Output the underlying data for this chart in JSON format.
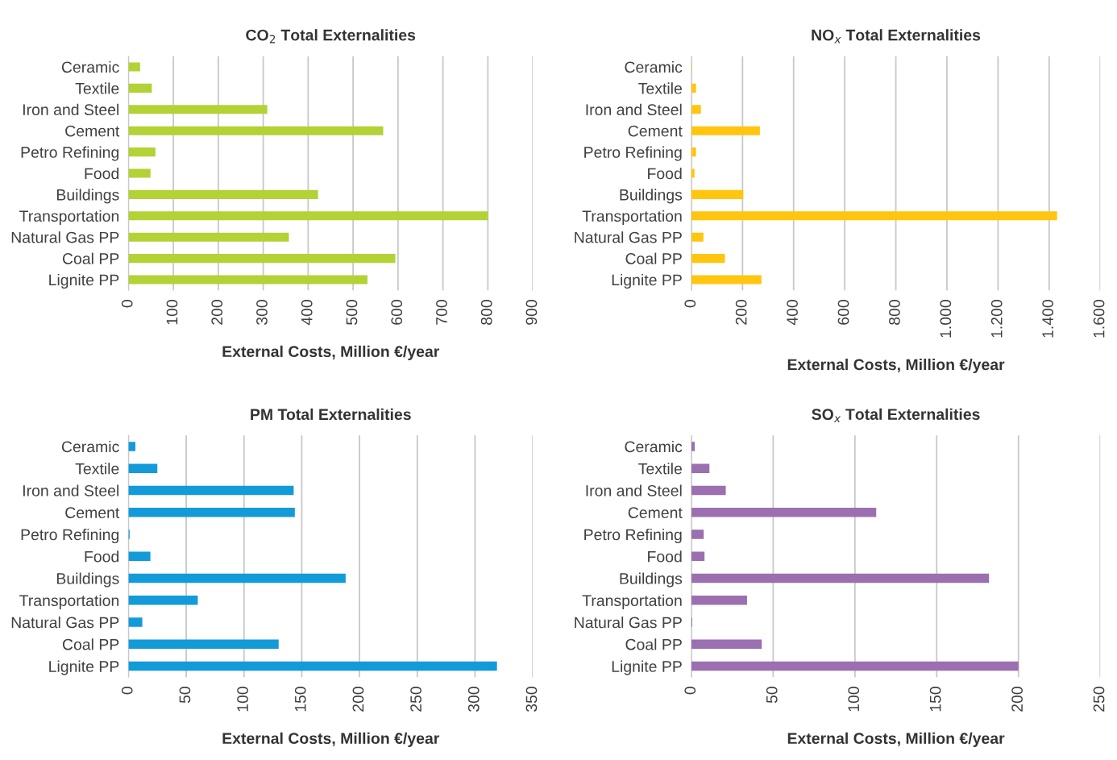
{
  "chart_data": [
    {
      "type": "bar",
      "orientation": "horizontal",
      "title": "CO$_{2}$ Total Externalities",
      "xlabel": "External Costs, Million €/year",
      "categories": [
        "Ceramic",
        "Textile",
        "Iron and Steel",
        "Cement",
        "Petro Refining",
        "Food",
        "Buildings",
        "Transportation",
        "Natural Gas PP",
        "Coal PP",
        "Lignite PP"
      ],
      "values": [
        26,
        52,
        309,
        567,
        60,
        49,
        422,
        800,
        357,
        594,
        532
      ],
      "color": "#b2d235",
      "xlim": [
        0,
        900
      ],
      "xticks": [
        0,
        100,
        200,
        300,
        400,
        500,
        600,
        700,
        800,
        900
      ],
      "grid": "x",
      "legend": false
    },
    {
      "type": "bar",
      "orientation": "horizontal",
      "title": "NO$_{x}$ Total Externalities",
      "xlabel": "External Costs, Million €/year",
      "categories": [
        "Ceramic",
        "Textile",
        "Iron and Steel",
        "Cement",
        "Petro Refining",
        "Food",
        "Buildings",
        "Transportation",
        "Natural Gas PP",
        "Coal PP",
        "Lignite PP"
      ],
      "values": [
        2,
        18,
        37,
        268,
        18,
        12,
        203,
        1431,
        47,
        131,
        274
      ],
      "color": "#ffc50f",
      "xlim": [
        0,
        1600
      ],
      "xticks": [
        0,
        200,
        400,
        600,
        800,
        {
          "value": 1000,
          "label": "1.000"
        },
        {
          "value": 1200,
          "label": "1.200"
        },
        {
          "value": 1400,
          "label": "1.400"
        },
        {
          "value": 1600,
          "label": "1.600"
        }
      ],
      "grid": "x",
      "legend": false
    },
    {
      "type": "bar",
      "orientation": "horizontal",
      "title": "PM Total Externalities",
      "xlabel": "External Costs, Million €/year",
      "categories": [
        "Ceramic",
        "Textile",
        "Iron and Steel",
        "Cement",
        "Petro Refining",
        "Food",
        "Buildings",
        "Transportation",
        "Natural Gas PP",
        "Coal PP",
        "Lignite PP"
      ],
      "values": [
        6,
        25,
        143,
        144,
        1,
        19,
        188,
        60,
        12,
        130,
        319
      ],
      "color": "#139ad9",
      "xlim": [
        0,
        350
      ],
      "xticks": [
        0,
        50,
        100,
        150,
        200,
        250,
        300,
        350
      ],
      "grid": "x",
      "legend": false
    },
    {
      "type": "bar",
      "orientation": "horizontal",
      "title": "SO$_{x}$ Total Externalities",
      "xlabel": "External Costs, Million €/year",
      "categories": [
        "Ceramic",
        "Textile",
        "Iron and Steel",
        "Cement",
        "Petro Refining",
        "Food",
        "Buildings",
        "Transportation",
        "Natural Gas PP",
        "Coal PP",
        "Lignite PP"
      ],
      "values": [
        2,
        11,
        21,
        113,
        7.5,
        8,
        182,
        34,
        0.5,
        43,
        200
      ],
      "color": "#9b6fb0",
      "xlim": [
        0,
        250
      ],
      "xticks": [
        0,
        50,
        100,
        150,
        200,
        250
      ],
      "grid": "x",
      "legend": false
    }
  ]
}
